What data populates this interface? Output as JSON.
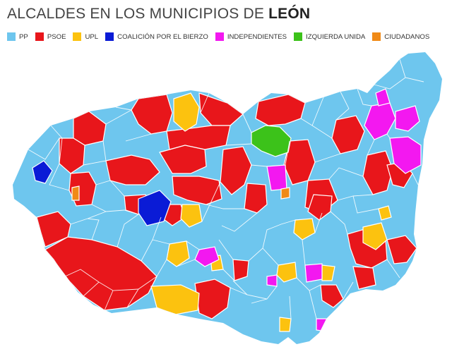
{
  "title": {
    "prefix": "ALCALDES EN LOS MUNICIPIOS DE ",
    "bold": "LEÓN"
  },
  "legend": [
    {
      "label": "PP",
      "color": "#6ec6ee"
    },
    {
      "label": "PSOE",
      "color": "#e8161b"
    },
    {
      "label": "UPL",
      "color": "#fcc20f"
    },
    {
      "label": "COALICIÓN POR EL BIERZO",
      "color": "#0a1bd6"
    },
    {
      "label": "INDEPENDIENTES",
      "color": "#f318f0"
    },
    {
      "label": "IZQUIERDA UNIDA",
      "color": "#3cc21a"
    },
    {
      "label": "CIUDADANOS",
      "color": "#f08a17"
    }
  ],
  "colors": {
    "base": "#6ec6ee",
    "border": "#ffffff"
  }
}
